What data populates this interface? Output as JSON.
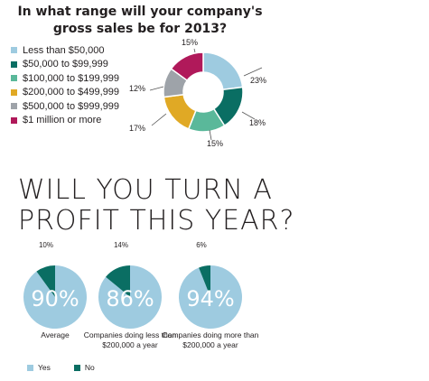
{
  "chart_data": [
    {
      "type": "pie",
      "title": "In what range will your company's gross sales be for 2013?",
      "categories": [
        "Less than $50,000",
        "$50,000 to $99,999",
        "$100,000 to $199,999",
        "$200,000 to $499,999",
        "$500,000 to $999,999",
        "$1 million or more"
      ],
      "values": [
        23,
        18,
        15,
        17,
        12,
        15
      ],
      "labels": [
        "23%",
        "18%",
        "15%",
        "17%",
        "12%",
        "15%"
      ],
      "colors": [
        "#9ecbe0",
        "#0a6e63",
        "#5ab89a",
        "#e0a925",
        "#9ea3a9",
        "#b0195a"
      ],
      "donut": true,
      "legend": "left"
    },
    {
      "type": "pie",
      "title": "WILL YOU TURN A PROFIT THIS YEAR?",
      "pies": [
        {
          "caption": "Average",
          "yes": 90,
          "no": 10,
          "yes_label": "90%",
          "no_label": "10%"
        },
        {
          "caption": "Companies doing less than $200,000 a year",
          "yes": 86,
          "no": 14,
          "yes_label": "86%",
          "no_label": "14%"
        },
        {
          "caption": "Companies doing more than $200,000 a year",
          "yes": 94,
          "no": 6,
          "yes_label": "94%",
          "no_label": "6%"
        }
      ],
      "series": [
        {
          "name": "Yes",
          "color": "#9ecbe0"
        },
        {
          "name": "No",
          "color": "#0a6e63"
        }
      ],
      "legend": "bottom-left"
    }
  ],
  "text": {
    "q_title": "In what range will your company's gross sales be for 2013?",
    "big_title": "WILL YOU TURN A PROFIT THIS YEAR?",
    "yes": "Yes",
    "no": "No",
    "caption_avg": "Average",
    "caption_less": "Companies doing less than $200,000 a year",
    "caption_more": "Companies doing more than $200,000 a year"
  }
}
